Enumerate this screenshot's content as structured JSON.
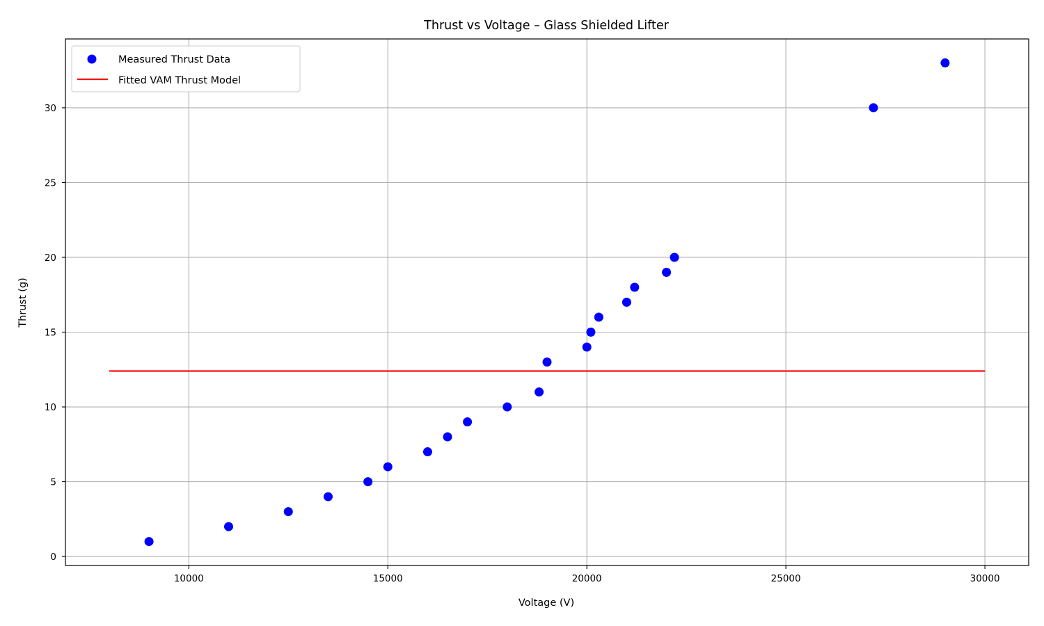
{
  "chart_data": {
    "type": "scatter",
    "title": "Thrust vs Voltage – Glass Shielded Lifter",
    "xlabel": "Voltage (V)",
    "ylabel": "Thrust (g)",
    "xlim": [
      6900,
      31100
    ],
    "ylim": [
      -0.6,
      34.6
    ],
    "xticks": [
      10000,
      15000,
      20000,
      25000,
      30000
    ],
    "yticks": [
      0,
      5,
      10,
      15,
      20,
      25,
      30
    ],
    "grid": true,
    "legend_position": "top-left",
    "series": [
      {
        "name": "Measured Thrust Data",
        "kind": "scatter",
        "color": "#0000ff",
        "x": [
          9000,
          11000,
          12500,
          13500,
          14500,
          15000,
          16000,
          16500,
          17000,
          18000,
          18800,
          19000,
          20000,
          20100,
          20300,
          21000,
          21200,
          22000,
          22200,
          27200,
          29000
        ],
        "y": [
          1,
          2,
          3,
          4,
          5,
          6,
          7,
          8,
          9,
          10,
          11,
          13,
          14,
          15,
          16,
          17,
          18,
          19,
          20,
          30,
          33
        ]
      },
      {
        "name": "Fitted VAM Thrust Model",
        "kind": "line",
        "color": "#ff0000",
        "x": [
          8000,
          30000
        ],
        "y": [
          12.4,
          12.4
        ]
      }
    ]
  }
}
